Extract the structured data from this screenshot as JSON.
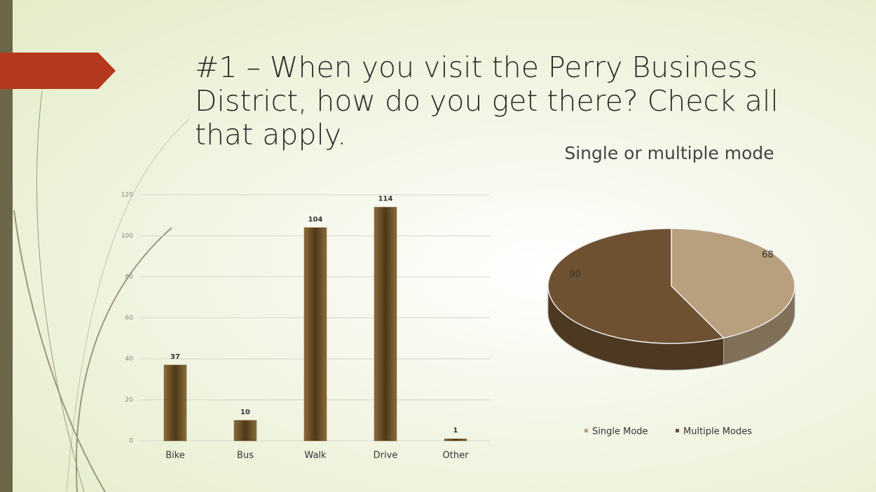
{
  "slide": {
    "title": "#1 – When you visit the Perry Business District, how do you get there? Check all that apply."
  },
  "chart_data": [
    {
      "type": "bar",
      "categories": [
        "Bike",
        "Bus",
        "Walk",
        "Drive",
        "Other"
      ],
      "values": [
        37,
        10,
        104,
        114,
        1
      ],
      "color": "#7a5c32",
      "ylim": [
        0,
        120
      ],
      "yticks": [
        0,
        20,
        40,
        60,
        80,
        100,
        120
      ],
      "grid": true
    },
    {
      "type": "pie",
      "title": "Single or multiple mode",
      "categories": [
        "Single Mode",
        "Multiple Modes"
      ],
      "values": [
        68,
        90
      ],
      "colors": [
        "#b8a07e",
        "#6e5130"
      ],
      "legend": "bottom"
    }
  ]
}
